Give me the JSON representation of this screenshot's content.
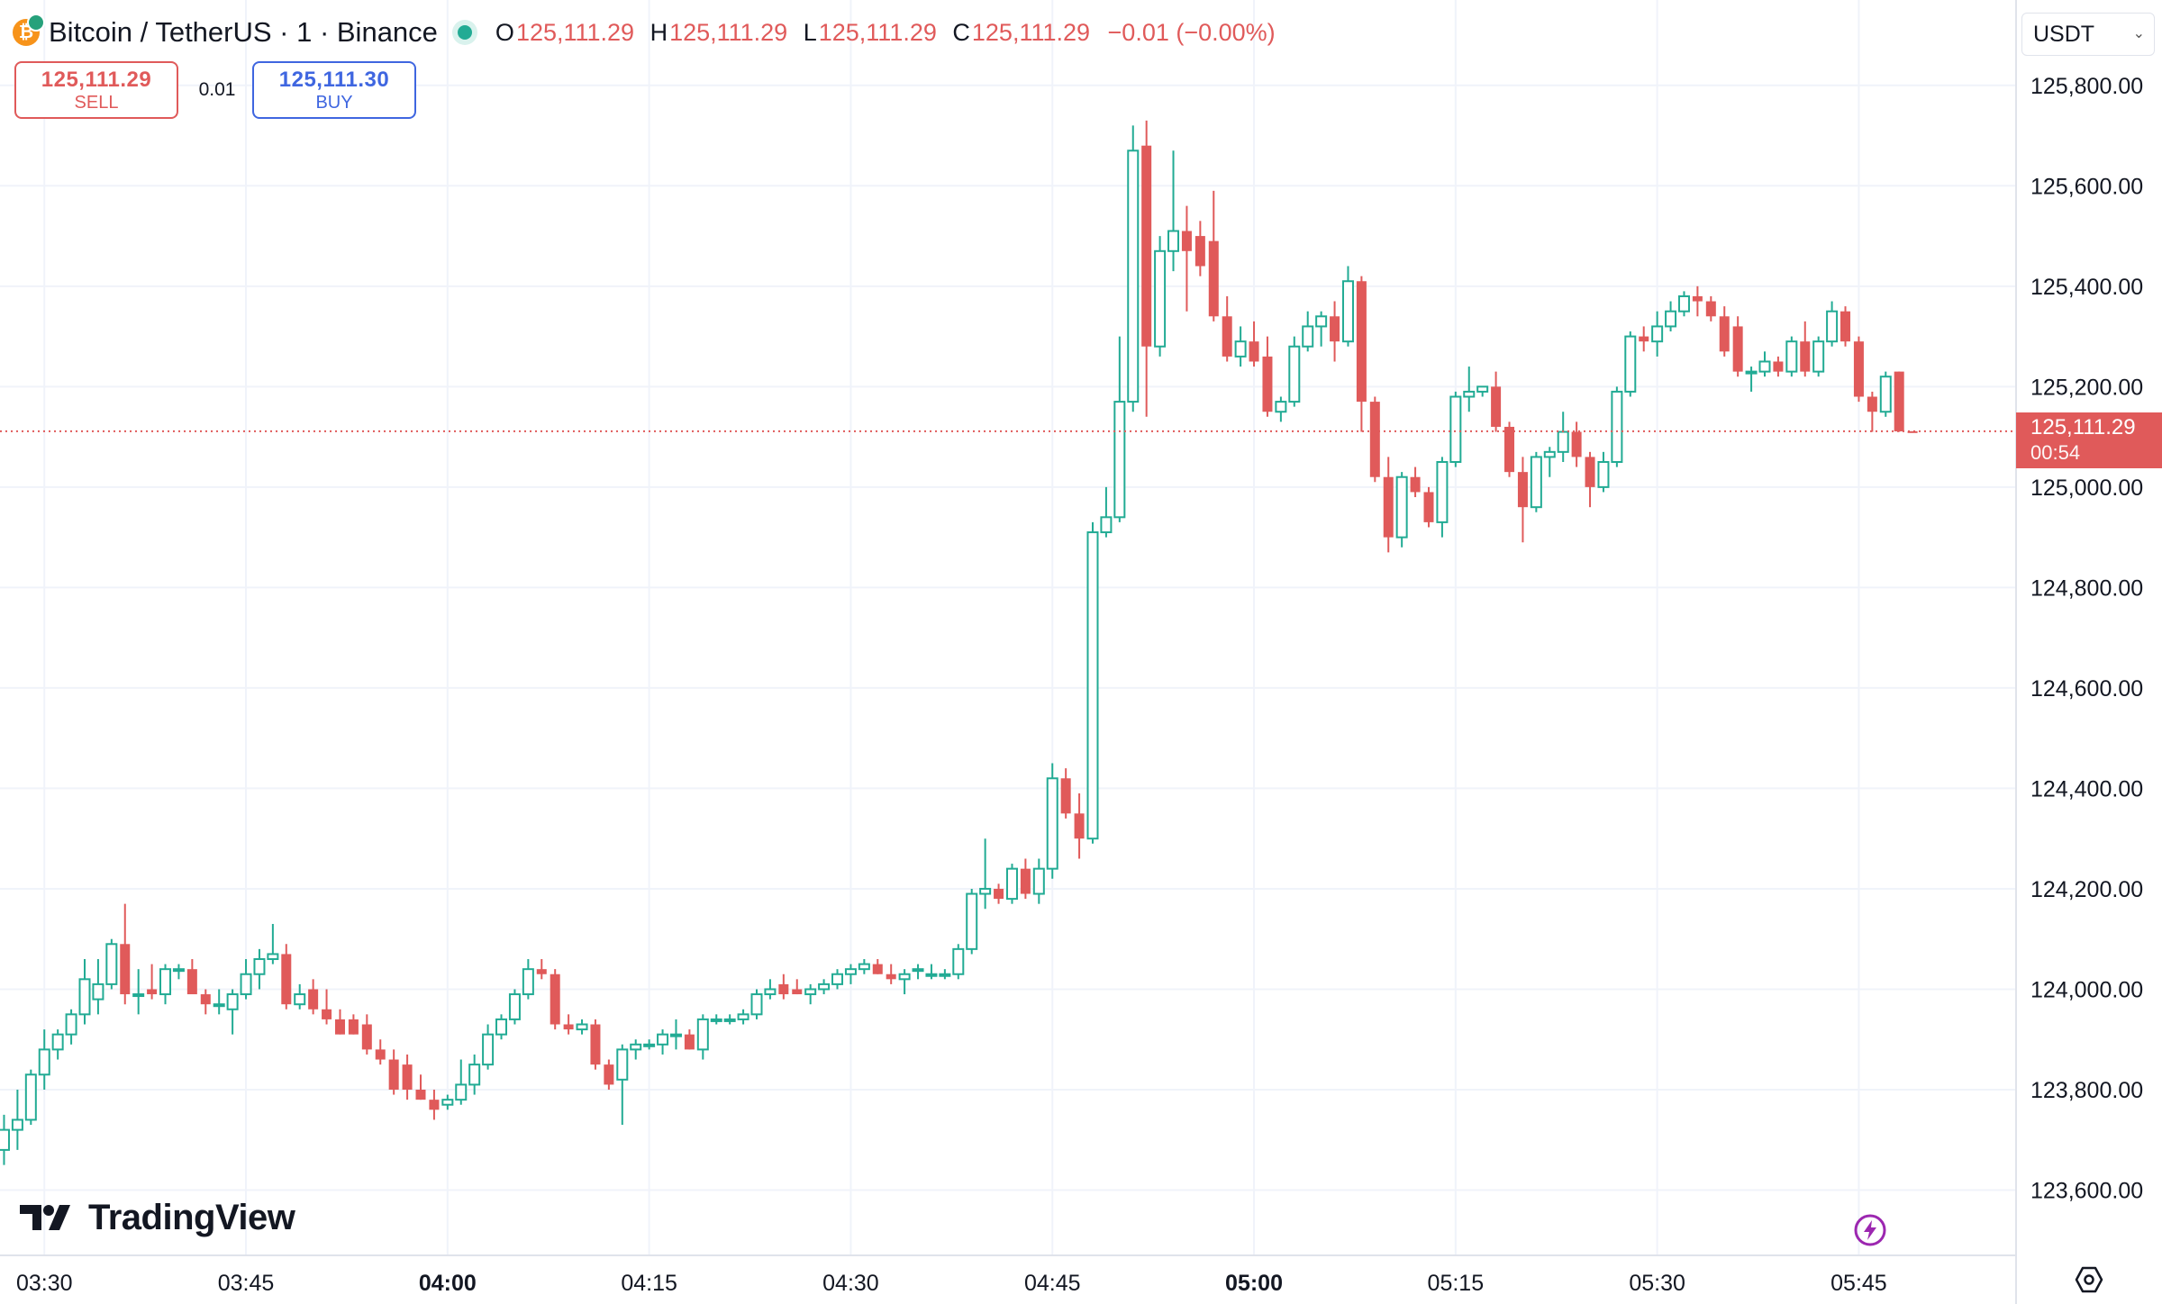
{
  "header": {
    "symbol": "Bitcoin / TetherUS · 1 · Binance",
    "ohlc": {
      "o_label": "O",
      "o": "125,111.29",
      "h_label": "H",
      "h": "125,111.29",
      "l_label": "L",
      "l": "125,111.29",
      "c_label": "C",
      "c": "125,111.29",
      "change": "−0.01 (−0.00%)"
    }
  },
  "trade": {
    "sell_price": "125,111.29",
    "sell_label": "SELL",
    "spread": "0.01",
    "buy_price": "125,111.30",
    "buy_label": "BUY"
  },
  "currency": "USDT",
  "brand": "TradingView",
  "last_price": {
    "price": "125,111.29",
    "countdown": "00:54"
  },
  "colors": {
    "up": "#22ab94",
    "down": "#e05a5a",
    "grid": "#f0f3fa",
    "buy": "#3f66e0"
  },
  "icons": {
    "coin": "bitcoin-icon",
    "bolt": "lightning-icon",
    "settings": "settings-icon"
  },
  "chart_data": {
    "type": "candlestick",
    "x_tick_labels": [
      "03:30",
      "03:45",
      "04:00",
      "04:15",
      "04:30",
      "04:45",
      "05:00",
      "05:15",
      "05:30",
      "05:45"
    ],
    "x_tick_minutes": [
      0,
      15,
      30,
      45,
      60,
      75,
      90,
      105,
      120,
      135
    ],
    "bold_x_ticks": [
      "04:00",
      "05:00"
    ],
    "y_tick_labels": [
      "125,800.00",
      "125,600.00",
      "125,400.00",
      "125,200.00",
      "125,000.00",
      "124,800.00",
      "124,600.00",
      "124,400.00",
      "124,200.00",
      "124,000.00",
      "123,800.00",
      "123,600.00"
    ],
    "y_tick_values": [
      125800,
      125600,
      125400,
      125200,
      125000,
      124800,
      124600,
      124400,
      124200,
      124000,
      123800,
      123600
    ],
    "ylim": [
      123470,
      125970
    ],
    "xlim": [
      -3.3,
      146.7
    ],
    "last_price_value": 125111.29,
    "grid": true,
    "candles": [
      {
        "t": -3,
        "o": 123680,
        "h": 123750,
        "l": 123650,
        "c": 123720
      },
      {
        "t": -2,
        "o": 123720,
        "h": 123800,
        "l": 123680,
        "c": 123740
      },
      {
        "t": -1,
        "o": 123740,
        "h": 123840,
        "l": 123730,
        "c": 123830
      },
      {
        "t": 0,
        "o": 123830,
        "h": 123920,
        "l": 123800,
        "c": 123880
      },
      {
        "t": 1,
        "o": 123880,
        "h": 123920,
        "l": 123860,
        "c": 123910
      },
      {
        "t": 2,
        "o": 123910,
        "h": 123960,
        "l": 123890,
        "c": 123950
      },
      {
        "t": 3,
        "o": 123950,
        "h": 124060,
        "l": 123930,
        "c": 124020
      },
      {
        "t": 4,
        "o": 123980,
        "h": 124060,
        "l": 123950,
        "c": 124010
      },
      {
        "t": 5,
        "o": 124010,
        "h": 124100,
        "l": 124000,
        "c": 124090
      },
      {
        "t": 6,
        "o": 124090,
        "h": 124170,
        "l": 123970,
        "c": 123990
      },
      {
        "t": 7,
        "o": 123990,
        "h": 124040,
        "l": 123950,
        "c": 123990
      },
      {
        "t": 8,
        "o": 124000,
        "h": 124050,
        "l": 123980,
        "c": 123990
      },
      {
        "t": 9,
        "o": 123990,
        "h": 124050,
        "l": 123970,
        "c": 124040
      },
      {
        "t": 10,
        "o": 124040,
        "h": 124050,
        "l": 124020,
        "c": 124040
      },
      {
        "t": 11,
        "o": 124040,
        "h": 124060,
        "l": 124000,
        "c": 123990
      },
      {
        "t": 12,
        "o": 123990,
        "h": 124000,
        "l": 123950,
        "c": 123970
      },
      {
        "t": 13,
        "o": 123970,
        "h": 124000,
        "l": 123950,
        "c": 123970
      },
      {
        "t": 14,
        "o": 123960,
        "h": 124000,
        "l": 123910,
        "c": 123990
      },
      {
        "t": 15,
        "o": 123990,
        "h": 124060,
        "l": 123980,
        "c": 124030
      },
      {
        "t": 16,
        "o": 124030,
        "h": 124080,
        "l": 124000,
        "c": 124060
      },
      {
        "t": 17,
        "o": 124060,
        "h": 124130,
        "l": 124050,
        "c": 124070
      },
      {
        "t": 18,
        "o": 124070,
        "h": 124090,
        "l": 123960,
        "c": 123970
      },
      {
        "t": 19,
        "o": 123970,
        "h": 124010,
        "l": 123960,
        "c": 123990
      },
      {
        "t": 20,
        "o": 124000,
        "h": 124020,
        "l": 123950,
        "c": 123960
      },
      {
        "t": 21,
        "o": 123960,
        "h": 124000,
        "l": 123930,
        "c": 123940
      },
      {
        "t": 22,
        "o": 123940,
        "h": 123960,
        "l": 123910,
        "c": 123910
      },
      {
        "t": 23,
        "o": 123940,
        "h": 123950,
        "l": 123910,
        "c": 123910
      },
      {
        "t": 24,
        "o": 123930,
        "h": 123950,
        "l": 123870,
        "c": 123880
      },
      {
        "t": 25,
        "o": 123880,
        "h": 123900,
        "l": 123850,
        "c": 123860
      },
      {
        "t": 26,
        "o": 123860,
        "h": 123880,
        "l": 123790,
        "c": 123800
      },
      {
        "t": 27,
        "o": 123850,
        "h": 123870,
        "l": 123780,
        "c": 123800
      },
      {
        "t": 28,
        "o": 123800,
        "h": 123830,
        "l": 123780,
        "c": 123780
      },
      {
        "t": 29,
        "o": 123780,
        "h": 123800,
        "l": 123740,
        "c": 123760
      },
      {
        "t": 30,
        "o": 123770,
        "h": 123790,
        "l": 123760,
        "c": 123780
      },
      {
        "t": 31,
        "o": 123780,
        "h": 123860,
        "l": 123770,
        "c": 123810
      },
      {
        "t": 32,
        "o": 123810,
        "h": 123870,
        "l": 123790,
        "c": 123850
      },
      {
        "t": 33,
        "o": 123850,
        "h": 123930,
        "l": 123840,
        "c": 123910
      },
      {
        "t": 34,
        "o": 123910,
        "h": 123950,
        "l": 123900,
        "c": 123940
      },
      {
        "t": 35,
        "o": 123940,
        "h": 124000,
        "l": 123930,
        "c": 123990
      },
      {
        "t": 36,
        "o": 123990,
        "h": 124060,
        "l": 123980,
        "c": 124040
      },
      {
        "t": 37,
        "o": 124040,
        "h": 124060,
        "l": 124020,
        "c": 124030
      },
      {
        "t": 38,
        "o": 124030,
        "h": 124040,
        "l": 123920,
        "c": 123930
      },
      {
        "t": 39,
        "o": 123930,
        "h": 123950,
        "l": 123910,
        "c": 123920
      },
      {
        "t": 40,
        "o": 123920,
        "h": 123940,
        "l": 123910,
        "c": 123930
      },
      {
        "t": 41,
        "o": 123930,
        "h": 123940,
        "l": 123840,
        "c": 123850
      },
      {
        "t": 42,
        "o": 123850,
        "h": 123860,
        "l": 123800,
        "c": 123810
      },
      {
        "t": 43,
        "o": 123820,
        "h": 123890,
        "l": 123730,
        "c": 123880
      },
      {
        "t": 44,
        "o": 123880,
        "h": 123900,
        "l": 123860,
        "c": 123890
      },
      {
        "t": 45,
        "o": 123890,
        "h": 123900,
        "l": 123880,
        "c": 123890
      },
      {
        "t": 46,
        "o": 123890,
        "h": 123920,
        "l": 123870,
        "c": 123910
      },
      {
        "t": 47,
        "o": 123910,
        "h": 123940,
        "l": 123880,
        "c": 123910
      },
      {
        "t": 48,
        "o": 123910,
        "h": 123920,
        "l": 123880,
        "c": 123880
      },
      {
        "t": 49,
        "o": 123880,
        "h": 123950,
        "l": 123860,
        "c": 123940
      },
      {
        "t": 50,
        "o": 123940,
        "h": 123950,
        "l": 123930,
        "c": 123940
      },
      {
        "t": 51,
        "o": 123940,
        "h": 123950,
        "l": 123930,
        "c": 123940
      },
      {
        "t": 52,
        "o": 123940,
        "h": 123960,
        "l": 123930,
        "c": 123950
      },
      {
        "t": 53,
        "o": 123950,
        "h": 124000,
        "l": 123940,
        "c": 123990
      },
      {
        "t": 54,
        "o": 123990,
        "h": 124020,
        "l": 123980,
        "c": 124000
      },
      {
        "t": 55,
        "o": 124010,
        "h": 124030,
        "l": 123980,
        "c": 123990
      },
      {
        "t": 56,
        "o": 124000,
        "h": 124020,
        "l": 123990,
        "c": 123990
      },
      {
        "t": 57,
        "o": 123990,
        "h": 124010,
        "l": 123970,
        "c": 124000
      },
      {
        "t": 58,
        "o": 124000,
        "h": 124020,
        "l": 123990,
        "c": 124010
      },
      {
        "t": 59,
        "o": 124010,
        "h": 124040,
        "l": 124000,
        "c": 124030
      },
      {
        "t": 60,
        "o": 124030,
        "h": 124050,
        "l": 124010,
        "c": 124040
      },
      {
        "t": 61,
        "o": 124040,
        "h": 124060,
        "l": 124030,
        "c": 124050
      },
      {
        "t": 62,
        "o": 124050,
        "h": 124060,
        "l": 124030,
        "c": 124030
      },
      {
        "t": 63,
        "o": 124030,
        "h": 124050,
        "l": 124010,
        "c": 124020
      },
      {
        "t": 64,
        "o": 124020,
        "h": 124040,
        "l": 123990,
        "c": 124030
      },
      {
        "t": 65,
        "o": 124040,
        "h": 124050,
        "l": 124020,
        "c": 124040
      },
      {
        "t": 66,
        "o": 124030,
        "h": 124050,
        "l": 124020,
        "c": 124030
      },
      {
        "t": 67,
        "o": 124030,
        "h": 124040,
        "l": 124020,
        "c": 124030
      },
      {
        "t": 68,
        "o": 124030,
        "h": 124090,
        "l": 124020,
        "c": 124080
      },
      {
        "t": 69,
        "o": 124080,
        "h": 124200,
        "l": 124070,
        "c": 124190
      },
      {
        "t": 70,
        "o": 124190,
        "h": 124300,
        "l": 124160,
        "c": 124200
      },
      {
        "t": 71,
        "o": 124200,
        "h": 124210,
        "l": 124170,
        "c": 124180
      },
      {
        "t": 72,
        "o": 124180,
        "h": 124250,
        "l": 124170,
        "c": 124240
      },
      {
        "t": 73,
        "o": 124240,
        "h": 124260,
        "l": 124180,
        "c": 124190
      },
      {
        "t": 74,
        "o": 124190,
        "h": 124260,
        "l": 124170,
        "c": 124240
      },
      {
        "t": 75,
        "o": 124240,
        "h": 124450,
        "l": 124220,
        "c": 124420
      },
      {
        "t": 76,
        "o": 124420,
        "h": 124440,
        "l": 124340,
        "c": 124350
      },
      {
        "t": 77,
        "o": 124350,
        "h": 124390,
        "l": 124260,
        "c": 124300
      },
      {
        "t": 78,
        "o": 124300,
        "h": 124930,
        "l": 124290,
        "c": 124910
      },
      {
        "t": 79,
        "o": 124910,
        "h": 125000,
        "l": 124900,
        "c": 124940
      },
      {
        "t": 80,
        "o": 124940,
        "h": 125300,
        "l": 124930,
        "c": 125170
      },
      {
        "t": 81,
        "o": 125170,
        "h": 125720,
        "l": 125150,
        "c": 125670
      },
      {
        "t": 82,
        "o": 125680,
        "h": 125730,
        "l": 125140,
        "c": 125280
      },
      {
        "t": 83,
        "o": 125280,
        "h": 125500,
        "l": 125260,
        "c": 125470
      },
      {
        "t": 84,
        "o": 125470,
        "h": 125670,
        "l": 125430,
        "c": 125510
      },
      {
        "t": 85,
        "o": 125510,
        "h": 125560,
        "l": 125350,
        "c": 125470
      },
      {
        "t": 86,
        "o": 125500,
        "h": 125530,
        "l": 125420,
        "c": 125440
      },
      {
        "t": 87,
        "o": 125490,
        "h": 125590,
        "l": 125330,
        "c": 125340
      },
      {
        "t": 88,
        "o": 125340,
        "h": 125380,
        "l": 125250,
        "c": 125260
      },
      {
        "t": 89,
        "o": 125260,
        "h": 125320,
        "l": 125240,
        "c": 125290
      },
      {
        "t": 90,
        "o": 125290,
        "h": 125330,
        "l": 125240,
        "c": 125250
      },
      {
        "t": 91,
        "o": 125260,
        "h": 125300,
        "l": 125140,
        "c": 125150
      },
      {
        "t": 92,
        "o": 125150,
        "h": 125180,
        "l": 125130,
        "c": 125170
      },
      {
        "t": 93,
        "o": 125170,
        "h": 125300,
        "l": 125160,
        "c": 125280
      },
      {
        "t": 94,
        "o": 125280,
        "h": 125350,
        "l": 125270,
        "c": 125320
      },
      {
        "t": 95,
        "o": 125320,
        "h": 125350,
        "l": 125280,
        "c": 125340
      },
      {
        "t": 96,
        "o": 125340,
        "h": 125370,
        "l": 125250,
        "c": 125290
      },
      {
        "t": 97,
        "o": 125290,
        "h": 125440,
        "l": 125280,
        "c": 125410
      },
      {
        "t": 98,
        "o": 125410,
        "h": 125420,
        "l": 125110,
        "c": 125170
      },
      {
        "t": 99,
        "o": 125170,
        "h": 125180,
        "l": 125010,
        "c": 125020
      },
      {
        "t": 100,
        "o": 125020,
        "h": 125060,
        "l": 124870,
        "c": 124900
      },
      {
        "t": 101,
        "o": 124900,
        "h": 125030,
        "l": 124880,
        "c": 125020
      },
      {
        "t": 102,
        "o": 125020,
        "h": 125040,
        "l": 124980,
        "c": 124990
      },
      {
        "t": 103,
        "o": 124990,
        "h": 125000,
        "l": 124920,
        "c": 124930
      },
      {
        "t": 104,
        "o": 124930,
        "h": 125060,
        "l": 124900,
        "c": 125050
      },
      {
        "t": 105,
        "o": 125050,
        "h": 125190,
        "l": 125040,
        "c": 125180
      },
      {
        "t": 106,
        "o": 125180,
        "h": 125240,
        "l": 125150,
        "c": 125190
      },
      {
        "t": 107,
        "o": 125190,
        "h": 125200,
        "l": 125180,
        "c": 125200
      },
      {
        "t": 108,
        "o": 125200,
        "h": 125230,
        "l": 125110,
        "c": 125120
      },
      {
        "t": 109,
        "o": 125120,
        "h": 125130,
        "l": 125020,
        "c": 125030
      },
      {
        "t": 110,
        "o": 125030,
        "h": 125060,
        "l": 124890,
        "c": 124960
      },
      {
        "t": 111,
        "o": 124960,
        "h": 125070,
        "l": 124950,
        "c": 125060
      },
      {
        "t": 112,
        "o": 125060,
        "h": 125080,
        "l": 125020,
        "c": 125070
      },
      {
        "t": 113,
        "o": 125070,
        "h": 125150,
        "l": 125050,
        "c": 125110
      },
      {
        "t": 114,
        "o": 125110,
        "h": 125130,
        "l": 125040,
        "c": 125060
      },
      {
        "t": 115,
        "o": 125060,
        "h": 125070,
        "l": 124960,
        "c": 125000
      },
      {
        "t": 116,
        "o": 125000,
        "h": 125070,
        "l": 124990,
        "c": 125050
      },
      {
        "t": 117,
        "o": 125050,
        "h": 125200,
        "l": 125040,
        "c": 125190
      },
      {
        "t": 118,
        "o": 125190,
        "h": 125310,
        "l": 125180,
        "c": 125300
      },
      {
        "t": 119,
        "o": 125300,
        "h": 125320,
        "l": 125270,
        "c": 125290
      },
      {
        "t": 120,
        "o": 125290,
        "h": 125350,
        "l": 125260,
        "c": 125320
      },
      {
        "t": 121,
        "o": 125320,
        "h": 125370,
        "l": 125310,
        "c": 125350
      },
      {
        "t": 122,
        "o": 125350,
        "h": 125390,
        "l": 125340,
        "c": 125380
      },
      {
        "t": 123,
        "o": 125380,
        "h": 125400,
        "l": 125340,
        "c": 125370
      },
      {
        "t": 124,
        "o": 125370,
        "h": 125380,
        "l": 125330,
        "c": 125340
      },
      {
        "t": 125,
        "o": 125340,
        "h": 125360,
        "l": 125260,
        "c": 125270
      },
      {
        "t": 126,
        "o": 125320,
        "h": 125340,
        "l": 125220,
        "c": 125230
      },
      {
        "t": 127,
        "o": 125230,
        "h": 125240,
        "l": 125190,
        "c": 125230
      },
      {
        "t": 128,
        "o": 125230,
        "h": 125270,
        "l": 125220,
        "c": 125250
      },
      {
        "t": 129,
        "o": 125250,
        "h": 125260,
        "l": 125220,
        "c": 125230
      },
      {
        "t": 130,
        "o": 125230,
        "h": 125300,
        "l": 125220,
        "c": 125290
      },
      {
        "t": 131,
        "o": 125290,
        "h": 125330,
        "l": 125220,
        "c": 125230
      },
      {
        "t": 132,
        "o": 125230,
        "h": 125300,
        "l": 125220,
        "c": 125290
      },
      {
        "t": 133,
        "o": 125290,
        "h": 125370,
        "l": 125280,
        "c": 125350
      },
      {
        "t": 134,
        "o": 125350,
        "h": 125360,
        "l": 125280,
        "c": 125290
      },
      {
        "t": 135,
        "o": 125290,
        "h": 125300,
        "l": 125170,
        "c": 125180
      },
      {
        "t": 136,
        "o": 125180,
        "h": 125190,
        "l": 125110,
        "c": 125150
      },
      {
        "t": 137,
        "o": 125150,
        "h": 125230,
        "l": 125140,
        "c": 125220
      },
      {
        "t": 138,
        "o": 125230,
        "h": 125230,
        "l": 125110,
        "c": 125111
      },
      {
        "t": 139,
        "o": 125111.3,
        "h": 125111.3,
        "l": 125111.29,
        "c": 125111.29
      }
    ]
  }
}
